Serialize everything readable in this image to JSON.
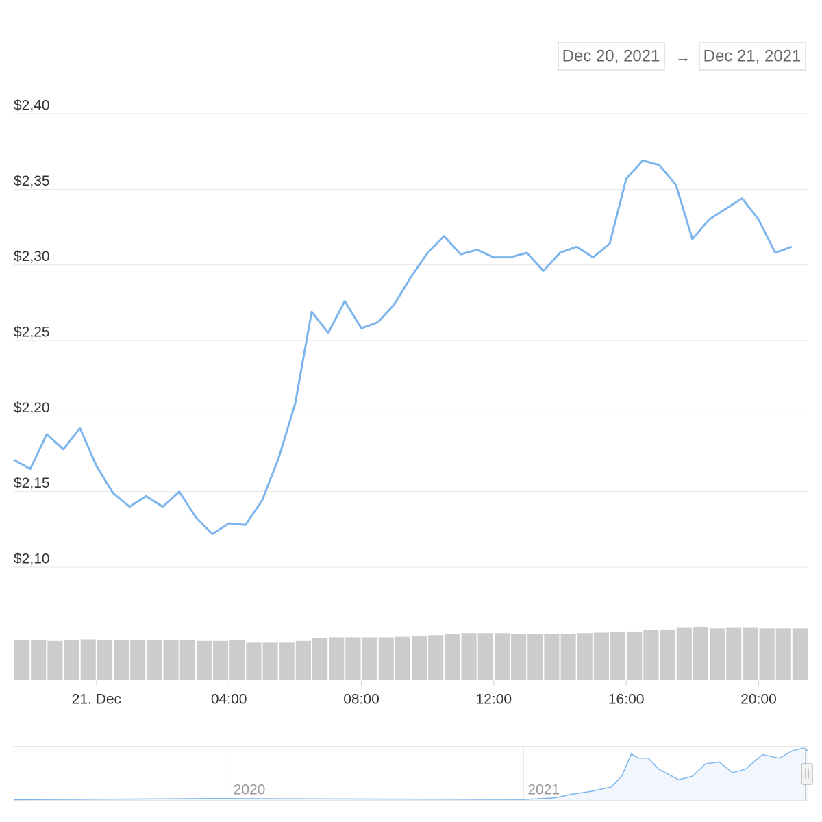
{
  "date_range": {
    "from": "Dec 20, 2021",
    "separator": "→",
    "to": "Dec 21, 2021"
  },
  "chart_data": [
    {
      "type": "line",
      "x": [
        "2021-12-20T21:30",
        "2021-12-20T22:00",
        "2021-12-20T22:30",
        "2021-12-20T23:00",
        "2021-12-20T23:30",
        "2021-12-21T00:00",
        "2021-12-21T00:30",
        "2021-12-21T01:00",
        "2021-12-21T01:30",
        "2021-12-21T02:00",
        "2021-12-21T02:30",
        "2021-12-21T03:00",
        "2021-12-21T03:30",
        "2021-12-21T04:00",
        "2021-12-21T04:30",
        "2021-12-21T05:00",
        "2021-12-21T05:30",
        "2021-12-21T06:00",
        "2021-12-21T06:30",
        "2021-12-21T07:00",
        "2021-12-21T07:30",
        "2021-12-21T08:00",
        "2021-12-21T08:30",
        "2021-12-21T09:00",
        "2021-12-21T09:30",
        "2021-12-21T10:00",
        "2021-12-21T10:30",
        "2021-12-21T11:00",
        "2021-12-21T11:30",
        "2021-12-21T12:00",
        "2021-12-21T12:30",
        "2021-12-21T13:00",
        "2021-12-21T13:30",
        "2021-12-21T14:00",
        "2021-12-21T14:30",
        "2021-12-21T15:00",
        "2021-12-21T15:30",
        "2021-12-21T16:00",
        "2021-12-21T16:30",
        "2021-12-21T17:00",
        "2021-12-21T17:30",
        "2021-12-21T18:00",
        "2021-12-21T18:30",
        "2021-12-21T19:00",
        "2021-12-21T19:30",
        "2021-12-21T20:00",
        "2021-12-21T20:30",
        "2021-12-21T21:00"
      ],
      "series": [
        {
          "color": "#7cb5ec",
          "values": [
            2.171,
            2.165,
            2.188,
            2.178,
            2.192,
            2.167,
            2.149,
            2.14,
            2.147,
            2.14,
            2.15,
            2.133,
            2.122,
            2.129,
            2.128,
            2.144,
            2.172,
            2.208,
            2.269,
            2.255,
            2.276,
            2.258,
            2.262,
            2.274,
            2.292,
            2.308,
            2.319,
            2.307,
            2.31,
            2.305,
            2.305,
            2.308,
            2.296,
            2.308,
            2.312,
            2.305,
            2.314,
            2.357,
            2.369,
            2.366,
            2.353,
            2.317,
            2.33,
            2.337,
            2.344,
            2.33,
            2.308,
            2.312
          ]
        },
        {
          "type": "bar",
          "axis": "y2",
          "color": "#cccccc",
          "values": [
            74,
            74,
            73,
            75,
            76,
            75,
            75,
            75,
            75,
            75,
            74,
            73,
            73,
            74,
            71,
            71,
            71,
            73,
            78,
            80,
            80,
            80,
            80,
            81,
            82,
            84,
            87,
            88,
            88,
            88,
            87,
            87,
            87,
            87,
            88,
            89,
            90,
            91,
            94,
            95,
            98,
            99,
            97,
            98,
            98,
            97,
            97,
            97
          ]
        }
      ],
      "xlim": [
        "2021-12-20T21:30",
        "2021-12-21T21:30"
      ],
      "xticks": [
        {
          "value": "2021-12-21T00:00",
          "label": "21. Dec"
        },
        {
          "value": "2021-12-21T04:00",
          "label": "04:00"
        },
        {
          "value": "2021-12-21T08:00",
          "label": "08:00"
        },
        {
          "value": "2021-12-21T12:00",
          "label": "12:00"
        },
        {
          "value": "2021-12-21T16:00",
          "label": "16:00"
        },
        {
          "value": "2021-12-21T20:00",
          "label": "20:00"
        }
      ],
      "ylim": [
        2.1,
        2.4
      ],
      "yticks": [
        {
          "value": 2.1,
          "label": "$2,10"
        },
        {
          "value": 2.15,
          "label": "$2,15"
        },
        {
          "value": 2.2,
          "label": "$2,20"
        },
        {
          "value": 2.25,
          "label": "$2,25"
        },
        {
          "value": 2.3,
          "label": "$2,30"
        },
        {
          "value": 2.35,
          "label": "$2,35"
        },
        {
          "value": 2.4,
          "label": "$2,40"
        }
      ],
      "y2lim": [
        0,
        100
      ],
      "grid": true
    },
    {
      "type": "area",
      "x": [
        "2019-04-08",
        "2019-12-15",
        "2021-01-01",
        "2021-02-08",
        "2021-03-01",
        "2021-03-26",
        "2021-04-20",
        "2021-05-03",
        "2021-05-15",
        "2021-05-24",
        "2021-06-05",
        "2021-06-18",
        "2021-07-13",
        "2021-07-30",
        "2021-08-15",
        "2021-09-01",
        "2021-09-18",
        "2021-10-04",
        "2021-10-25",
        "2021-11-15",
        "2021-12-01",
        "2021-12-14",
        "2021-12-21"
      ],
      "series": [
        {
          "color": "#7cb5ec",
          "values": [
            0.02,
            0.07,
            0.03,
            0.1,
            0.27,
            0.41,
            0.61,
            1.12,
            2.16,
            1.96,
            1.96,
            1.45,
            0.95,
            1.12,
            1.69,
            1.79,
            1.28,
            1.45,
            2.13,
            1.96,
            2.3,
            2.43,
            2.3
          ]
        }
      ],
      "xlim": [
        "2019-04-08",
        "2021-12-21"
      ],
      "xticks": [
        {
          "value": "2020-01-01",
          "label": "2020"
        },
        {
          "value": "2021-01-01",
          "label": "2021"
        }
      ],
      "ylim": [
        0,
        2.5
      ]
    }
  ]
}
